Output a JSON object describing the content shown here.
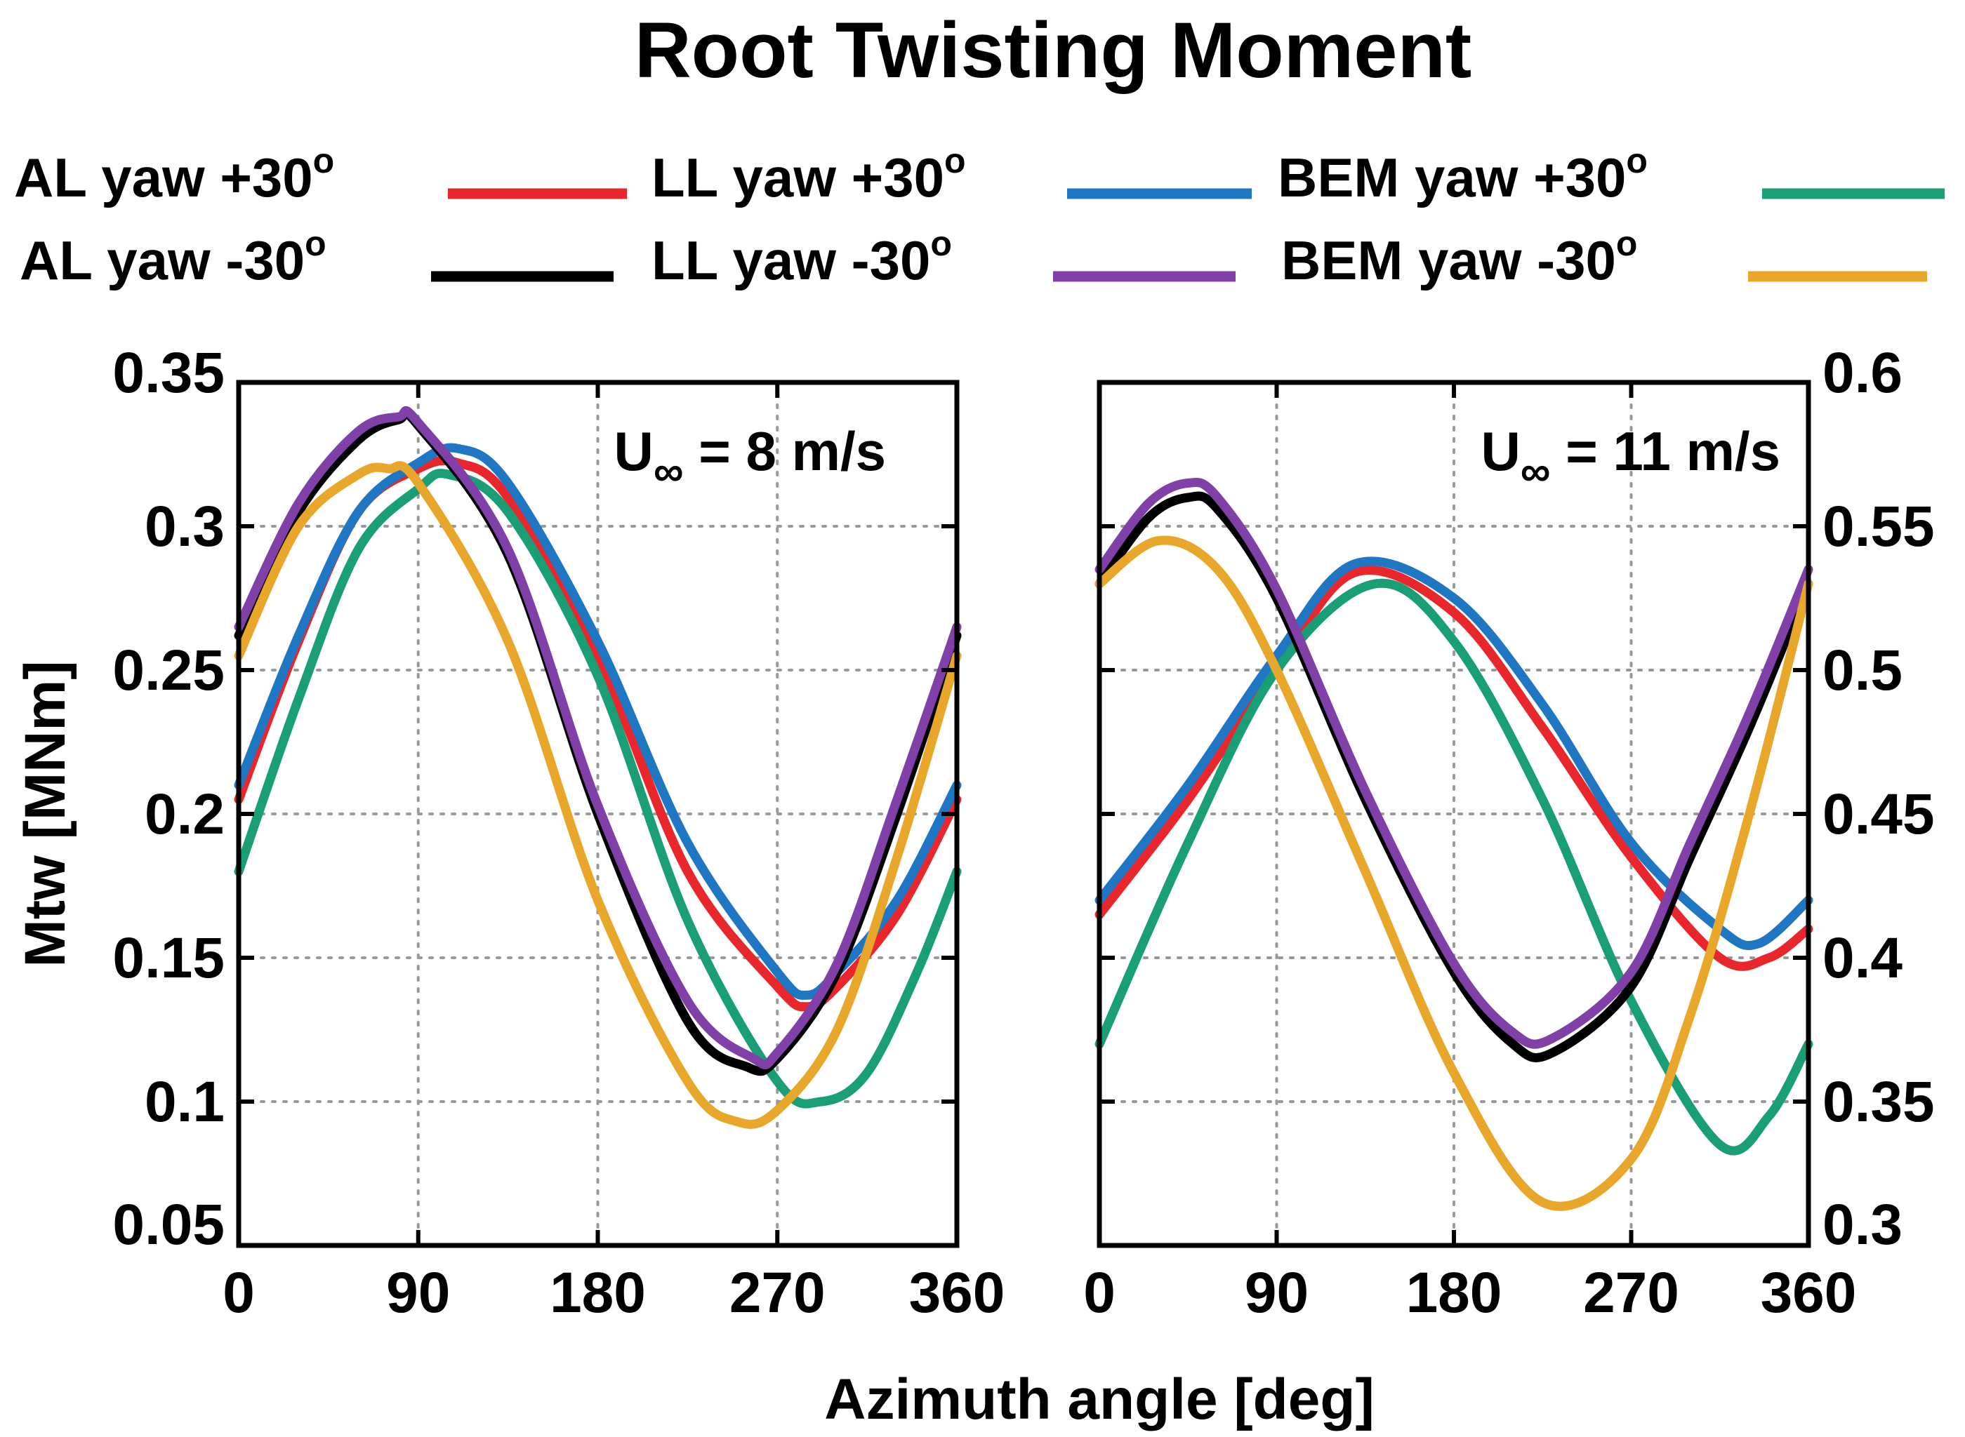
{
  "chart_data": {
    "type": "line",
    "title": "Root Twisting Moment",
    "xlabel": "Azimuth angle [deg]",
    "ylabel": "Mtw [MNm]",
    "legend": [
      {
        "name": "AL yaw +30",
        "superscript": "o",
        "color": "#e8262c"
      },
      {
        "name": "LL yaw +30",
        "superscript": "o",
        "color": "#1f77c4"
      },
      {
        "name": "BEM yaw +30",
        "superscript": "o",
        "color": "#1a9e76"
      },
      {
        "name": "AL yaw -30",
        "superscript": "o",
        "color": "#000000"
      },
      {
        "name": "LL yaw -30",
        "superscript": "o",
        "color": "#8140a8"
      },
      {
        "name": "BEM yaw -30",
        "superscript": "o",
        "color": "#e8a62a"
      }
    ],
    "panels": [
      {
        "label": "U",
        "label_subscript": "∞",
        "label_rest": " = 8 m/s",
        "y_axis_side": "left",
        "xlim": [
          0,
          360
        ],
        "xticks": [
          0,
          90,
          180,
          270,
          360
        ],
        "ylim": [
          0.05,
          0.35
        ],
        "yticks": [
          0.05,
          0.1,
          0.15,
          0.2,
          0.25,
          0.3,
          0.35
        ],
        "ytick_labels": [
          "0.05",
          "0.1",
          "0.15",
          "0.2",
          "0.25",
          "0.3",
          "0.35"
        ],
        "series": [
          {
            "name": "AL yaw +30",
            "color": "#e8262c",
            "x": [
              0,
              30,
              60,
              90,
              110,
              135,
              180,
              225,
              270,
              285,
              300,
              330,
              360
            ],
            "y": [
              0.205,
              0.26,
              0.305,
              0.32,
              0.322,
              0.31,
              0.255,
              0.18,
              0.14,
              0.133,
              0.14,
              0.165,
              0.205
            ]
          },
          {
            "name": "LL yaw +30",
            "color": "#1f77c4",
            "x": [
              0,
              30,
              60,
              90,
              110,
              135,
              180,
              225,
              270,
              285,
              300,
              330,
              360
            ],
            "y": [
              0.21,
              0.262,
              0.305,
              0.322,
              0.327,
              0.315,
              0.26,
              0.19,
              0.145,
              0.137,
              0.145,
              0.17,
              0.21
            ]
          },
          {
            "name": "BEM yaw +30",
            "color": "#1a9e76",
            "x": [
              0,
              30,
              60,
              90,
              105,
              135,
              180,
              225,
              270,
              292,
              315,
              340,
              360
            ],
            "y": [
              0.18,
              0.24,
              0.292,
              0.313,
              0.318,
              0.305,
              0.248,
              0.163,
              0.107,
              0.1,
              0.11,
              0.145,
              0.18
            ]
          },
          {
            "name": "AL yaw -30",
            "color": "#000000",
            "x": [
              0,
              30,
              60,
              80,
              90,
              135,
              180,
              225,
              255,
              270,
              300,
              330,
              360
            ],
            "y": [
              0.262,
              0.305,
              0.33,
              0.337,
              0.335,
              0.29,
              0.2,
              0.128,
              0.112,
              0.115,
              0.145,
              0.2,
              0.262
            ]
          },
          {
            "name": "LL yaw -30",
            "color": "#8140a8",
            "x": [
              0,
              30,
              60,
              80,
              90,
              135,
              180,
              225,
              258,
              270,
              300,
              330,
              360
            ],
            "y": [
              0.265,
              0.308,
              0.333,
              0.338,
              0.336,
              0.292,
              0.203,
              0.135,
              0.115,
              0.117,
              0.148,
              0.205,
              0.265
            ]
          },
          {
            "name": "BEM yaw -30",
            "color": "#e8a62a",
            "x": [
              0,
              30,
              60,
              75,
              90,
              135,
              180,
              225,
              250,
              270,
              300,
              330,
              360
            ],
            "y": [
              0.255,
              0.3,
              0.318,
              0.32,
              0.315,
              0.26,
              0.17,
              0.107,
              0.093,
              0.097,
              0.125,
              0.185,
              0.255
            ]
          }
        ]
      },
      {
        "label": "U",
        "label_subscript": "∞",
        "label_rest": " = 11 m/s",
        "y_axis_side": "right",
        "xlim": [
          0,
          360
        ],
        "xticks": [
          0,
          90,
          180,
          270,
          360
        ],
        "ylim": [
          0.3,
          0.6
        ],
        "yticks": [
          0.3,
          0.35,
          0.4,
          0.45,
          0.5,
          0.55,
          0.6
        ],
        "ytick_labels": [
          "0.3",
          "0.35",
          "0.4",
          "0.45",
          "0.5",
          "0.55",
          "0.6"
        ],
        "series": [
          {
            "name": "AL yaw +30",
            "color": "#e8262c",
            "x": [
              0,
              45,
              90,
              130,
              180,
              225,
              270,
              315,
              340,
              360
            ],
            "y": [
              0.415,
              0.455,
              0.5,
              0.534,
              0.52,
              0.48,
              0.435,
              0.4,
              0.4,
              0.41
            ]
          },
          {
            "name": "LL yaw +30",
            "color": "#1f77c4",
            "x": [
              0,
              45,
              90,
              130,
              180,
              225,
              270,
              315,
              335,
              360
            ],
            "y": [
              0.42,
              0.46,
              0.505,
              0.537,
              0.525,
              0.488,
              0.44,
              0.41,
              0.405,
              0.42
            ]
          },
          {
            "name": "BEM yaw +30",
            "color": "#1a9e76",
            "x": [
              0,
              45,
              90,
              140,
              180,
              225,
              270,
              315,
              340,
              360
            ],
            "y": [
              0.37,
              0.44,
              0.5,
              0.53,
              0.51,
              0.455,
              0.385,
              0.335,
              0.345,
              0.37
            ]
          },
          {
            "name": "AL yaw -30",
            "color": "#000000",
            "x": [
              0,
              25,
              45,
              60,
              90,
              135,
              180,
              210,
              230,
              270,
              300,
              330,
              360
            ],
            "y": [
              0.53,
              0.553,
              0.56,
              0.556,
              0.525,
              0.455,
              0.395,
              0.37,
              0.367,
              0.39,
              0.435,
              0.48,
              0.53
            ]
          },
          {
            "name": "LL yaw -30",
            "color": "#8140a8",
            "x": [
              0,
              25,
              45,
              60,
              90,
              135,
              180,
              210,
              230,
              270,
              300,
              330,
              360
            ],
            "y": [
              0.535,
              0.558,
              0.565,
              0.56,
              0.528,
              0.458,
              0.398,
              0.374,
              0.372,
              0.395,
              0.44,
              0.485,
              0.535
            ]
          },
          {
            "name": "BEM yaw -30",
            "color": "#e8a62a",
            "x": [
              0,
              30,
              60,
              90,
              135,
              180,
              225,
              270,
              300,
              330,
              360
            ],
            "y": [
              0.53,
              0.545,
              0.535,
              0.5,
              0.43,
              0.36,
              0.315,
              0.33,
              0.38,
              0.45,
              0.53
            ]
          }
        ]
      }
    ]
  }
}
